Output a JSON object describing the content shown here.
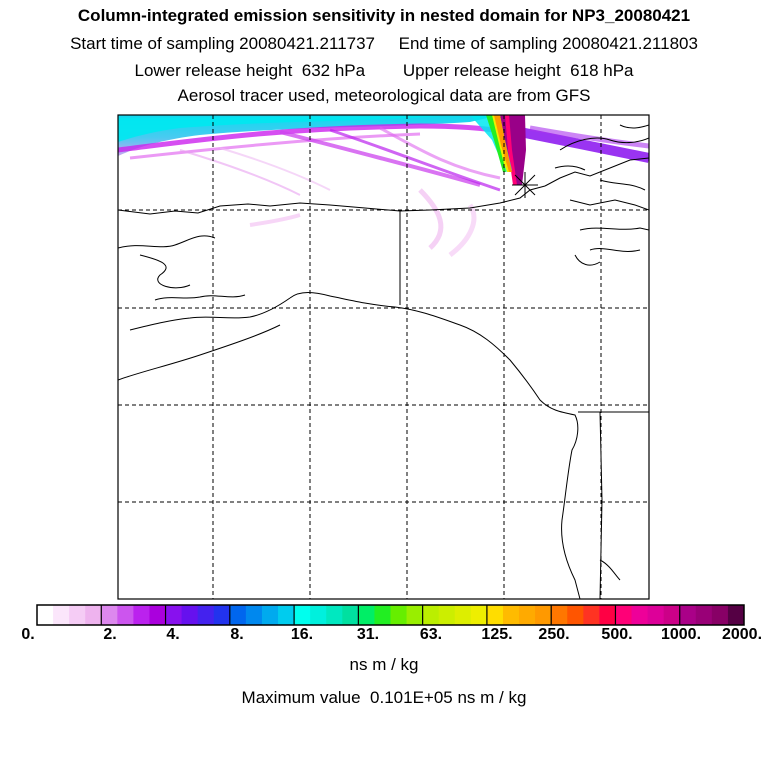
{
  "header": {
    "title": "Column-integrated emission sensitivity in nested domain for NP3_20080421",
    "start_label": "Start time of sampling 20080421.211737",
    "end_label": "End time of sampling 20080421.211803",
    "lower_label": "Lower release height  632 hPa",
    "upper_label": "Upper release height  618 hPa",
    "note": "Aerosol tracer used, meteorological data are from GFS"
  },
  "colorbar": {
    "tick_labels": [
      "0.",
      "2.",
      "4.",
      "8.",
      "16.",
      "31.",
      "63.",
      "125.",
      "250.",
      "500.",
      "1000.",
      "2000."
    ],
    "colors": [
      [
        "#ffffff",
        "#fbe6fb",
        "#f5ccf5",
        "#eeb3ee"
      ],
      [
        "#dd88ee",
        "#cc55ee",
        "#bb22ee",
        "#aa00dd"
      ],
      [
        "#8811ee",
        "#6611ee",
        "#4422ee",
        "#2233ee"
      ],
      [
        "#0066ee",
        "#0088ee",
        "#00aaee",
        "#00ccee"
      ],
      [
        "#00ffee",
        "#00f0dd",
        "#00e8c0",
        "#00e0a0"
      ],
      [
        "#00ee66",
        "#22ee22",
        "#66ee00",
        "#99ee00"
      ],
      [
        "#bbee00",
        "#ccee00",
        "#ddee00",
        "#eeee00"
      ],
      [
        "#ffdd00",
        "#ffbb00",
        "#ffaa00",
        "#ff9900"
      ],
      [
        "#ff7700",
        "#ff5500",
        "#ff3322",
        "#ff0044"
      ],
      [
        "#ff0077",
        "#ee0099",
        "#dd0099",
        "#cc0088"
      ],
      [
        "#aa0088",
        "#990077",
        "#880066",
        "#550044"
      ]
    ],
    "unit": "ns m / kg",
    "max_label": "Maximum value  0.101E+05 ns m / kg"
  }
}
